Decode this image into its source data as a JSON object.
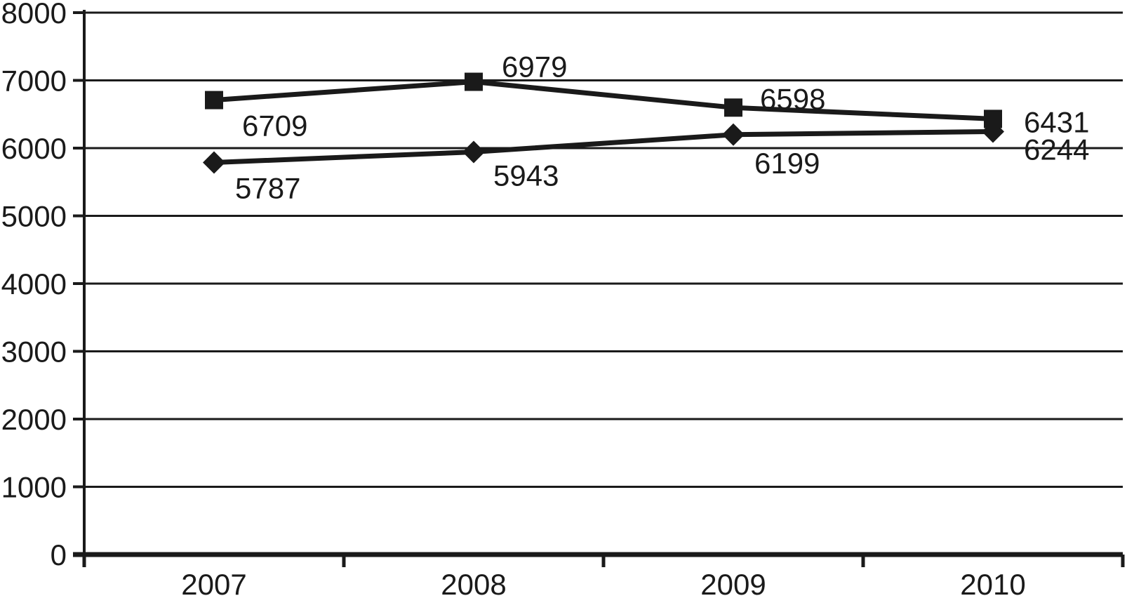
{
  "chart_data": {
    "type": "line",
    "title": "",
    "xlabel": "",
    "ylabel": "",
    "categories": [
      "2007",
      "2008",
      "2009",
      "2010"
    ],
    "series": [
      {
        "name": "square-series",
        "marker": "square",
        "values": [
          6709,
          6979,
          6598,
          6431
        ],
        "point_labels": [
          "6709",
          "6979",
          "6598",
          "6431"
        ],
        "label_offsets": [
          [
            40,
            36
          ],
          [
            40,
            -22
          ],
          [
            38,
            -13
          ],
          [
            44,
            4
          ]
        ]
      },
      {
        "name": "diamond-series",
        "marker": "diamond",
        "values": [
          5787,
          5943,
          6199,
          6244
        ],
        "point_labels": [
          "5787",
          "5943",
          "6199",
          "6244"
        ],
        "label_offsets": [
          [
            30,
            36
          ],
          [
            28,
            33
          ],
          [
            30,
            40
          ],
          [
            44,
            25
          ]
        ]
      }
    ],
    "ylim": [
      0,
      8000
    ],
    "ytick_step": 1000,
    "ytick_labels_top_to_bottom": [
      "8000",
      "7000",
      "6000",
      "5000",
      "4000",
      "3000",
      "2000",
      "1000",
      "0"
    ],
    "grid": "horizontal-major-only",
    "legend": "none",
    "colors": {
      "line": "#1a1a1a",
      "marker": "#1a1a1a",
      "grid": "#1a1a1a",
      "axis": "#1a1a1a",
      "text": "#1a1a1a",
      "background": "#ffffff"
    }
  }
}
